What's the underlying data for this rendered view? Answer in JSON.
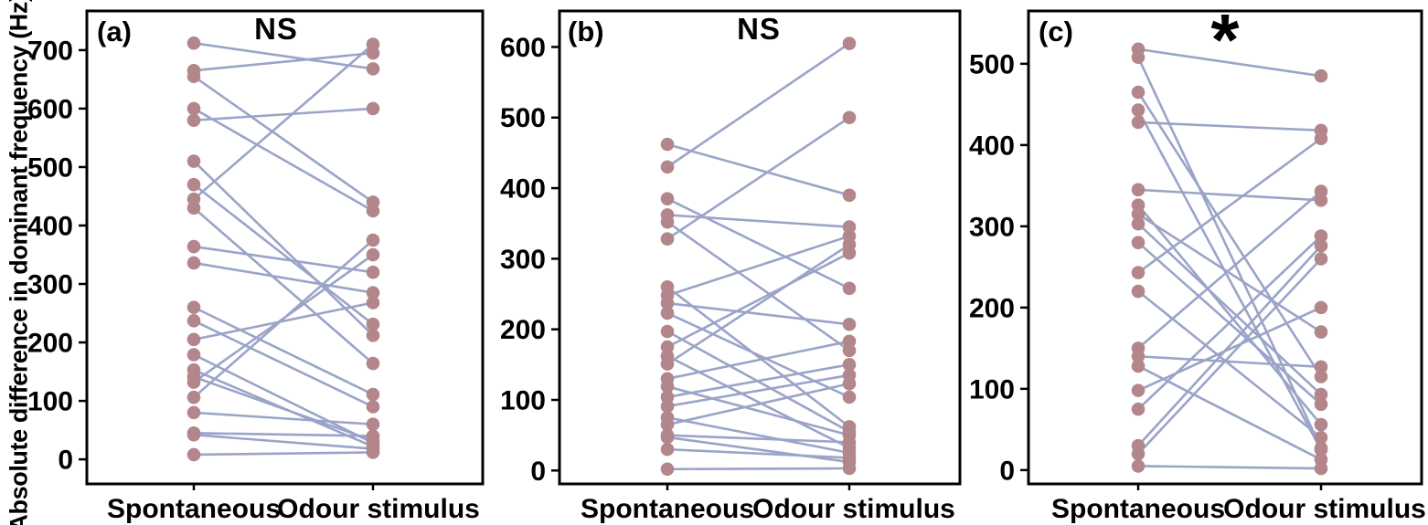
{
  "figure": {
    "ylabel": "Absolute difference in dominant frequency (Hz)",
    "categories": [
      "Spontaneous",
      "Odour stimulus"
    ],
    "colors": {
      "dot": "#b2868b",
      "line": "#9aa4c8",
      "axis": "#000000",
      "background": "#ffffff",
      "text": "#000000"
    }
  },
  "chart_data": [
    {
      "type": "line",
      "variant": "paired-slope",
      "panel": "(a)",
      "significance": "NS",
      "categories": [
        "Spontaneous",
        "Odour stimulus"
      ],
      "ylabel": "Absolute difference in dominant frequency (Hz)",
      "yticks": [
        0,
        100,
        200,
        300,
        400,
        500,
        600,
        700
      ],
      "ylim": [
        -42,
        767
      ],
      "grid": false,
      "pairs": [
        [
          712,
          668
        ],
        [
          665,
          695
        ],
        [
          655,
          440
        ],
        [
          600,
          425
        ],
        [
          580,
          600
        ],
        [
          510,
          212
        ],
        [
          470,
          231
        ],
        [
          445,
          710
        ],
        [
          430,
          164
        ],
        [
          364,
          320
        ],
        [
          336,
          285
        ],
        [
          260,
          111
        ],
        [
          237,
          90
        ],
        [
          205,
          268
        ],
        [
          179,
          28
        ],
        [
          153,
          22
        ],
        [
          141,
          32
        ],
        [
          132,
          350
        ],
        [
          106,
          375
        ],
        [
          80,
          60
        ],
        [
          45,
          40
        ],
        [
          42,
          18
        ],
        [
          8,
          12
        ]
      ]
    },
    {
      "type": "line",
      "variant": "paired-slope",
      "panel": "(b)",
      "significance": "NS",
      "categories": [
        "Spontaneous",
        "Odour stimulus"
      ],
      "ylabel": "Absolute difference in dominant frequency (Hz)",
      "yticks": [
        0,
        100,
        200,
        300,
        400,
        500,
        600
      ],
      "ylim": [
        -19,
        651
      ],
      "grid": false,
      "pairs": [
        [
          462,
          390
        ],
        [
          430,
          605
        ],
        [
          385,
          258
        ],
        [
          362,
          345
        ],
        [
          352,
          170
        ],
        [
          328,
          500
        ],
        [
          260,
          62
        ],
        [
          248,
          332
        ],
        [
          237,
          207
        ],
        [
          223,
          104
        ],
        [
          197,
          55
        ],
        [
          175,
          308
        ],
        [
          162,
          32
        ],
        [
          151,
          320
        ],
        [
          130,
          183
        ],
        [
          119,
          50
        ],
        [
          104,
          150
        ],
        [
          91,
          135
        ],
        [
          75,
          25
        ],
        [
          65,
          123
        ],
        [
          50,
          40
        ],
        [
          47,
          12
        ],
        [
          30,
          18
        ],
        [
          2,
          3
        ]
      ]
    },
    {
      "type": "line",
      "variant": "paired-slope",
      "panel": "(c)",
      "significance": "*",
      "categories": [
        "Spontaneous",
        "Odour stimulus"
      ],
      "ylabel": "Absolute difference in dominant frequency (Hz)",
      "yticks": [
        0,
        100,
        200,
        300,
        400,
        500
      ],
      "ylim": [
        -17,
        565
      ],
      "grid": false,
      "pairs": [
        [
          518,
          485
        ],
        [
          508,
          27
        ],
        [
          465,
          115
        ],
        [
          443,
          25
        ],
        [
          428,
          418
        ],
        [
          345,
          332
        ],
        [
          326,
          56
        ],
        [
          315,
          170
        ],
        [
          303,
          93
        ],
        [
          280,
          81
        ],
        [
          243,
          408
        ],
        [
          220,
          40
        ],
        [
          150,
          343
        ],
        [
          140,
          127
        ],
        [
          128,
          13
        ],
        [
          98,
          200
        ],
        [
          75,
          288
        ],
        [
          30,
          276
        ],
        [
          20,
          260
        ],
        [
          5,
          2
        ]
      ]
    }
  ]
}
